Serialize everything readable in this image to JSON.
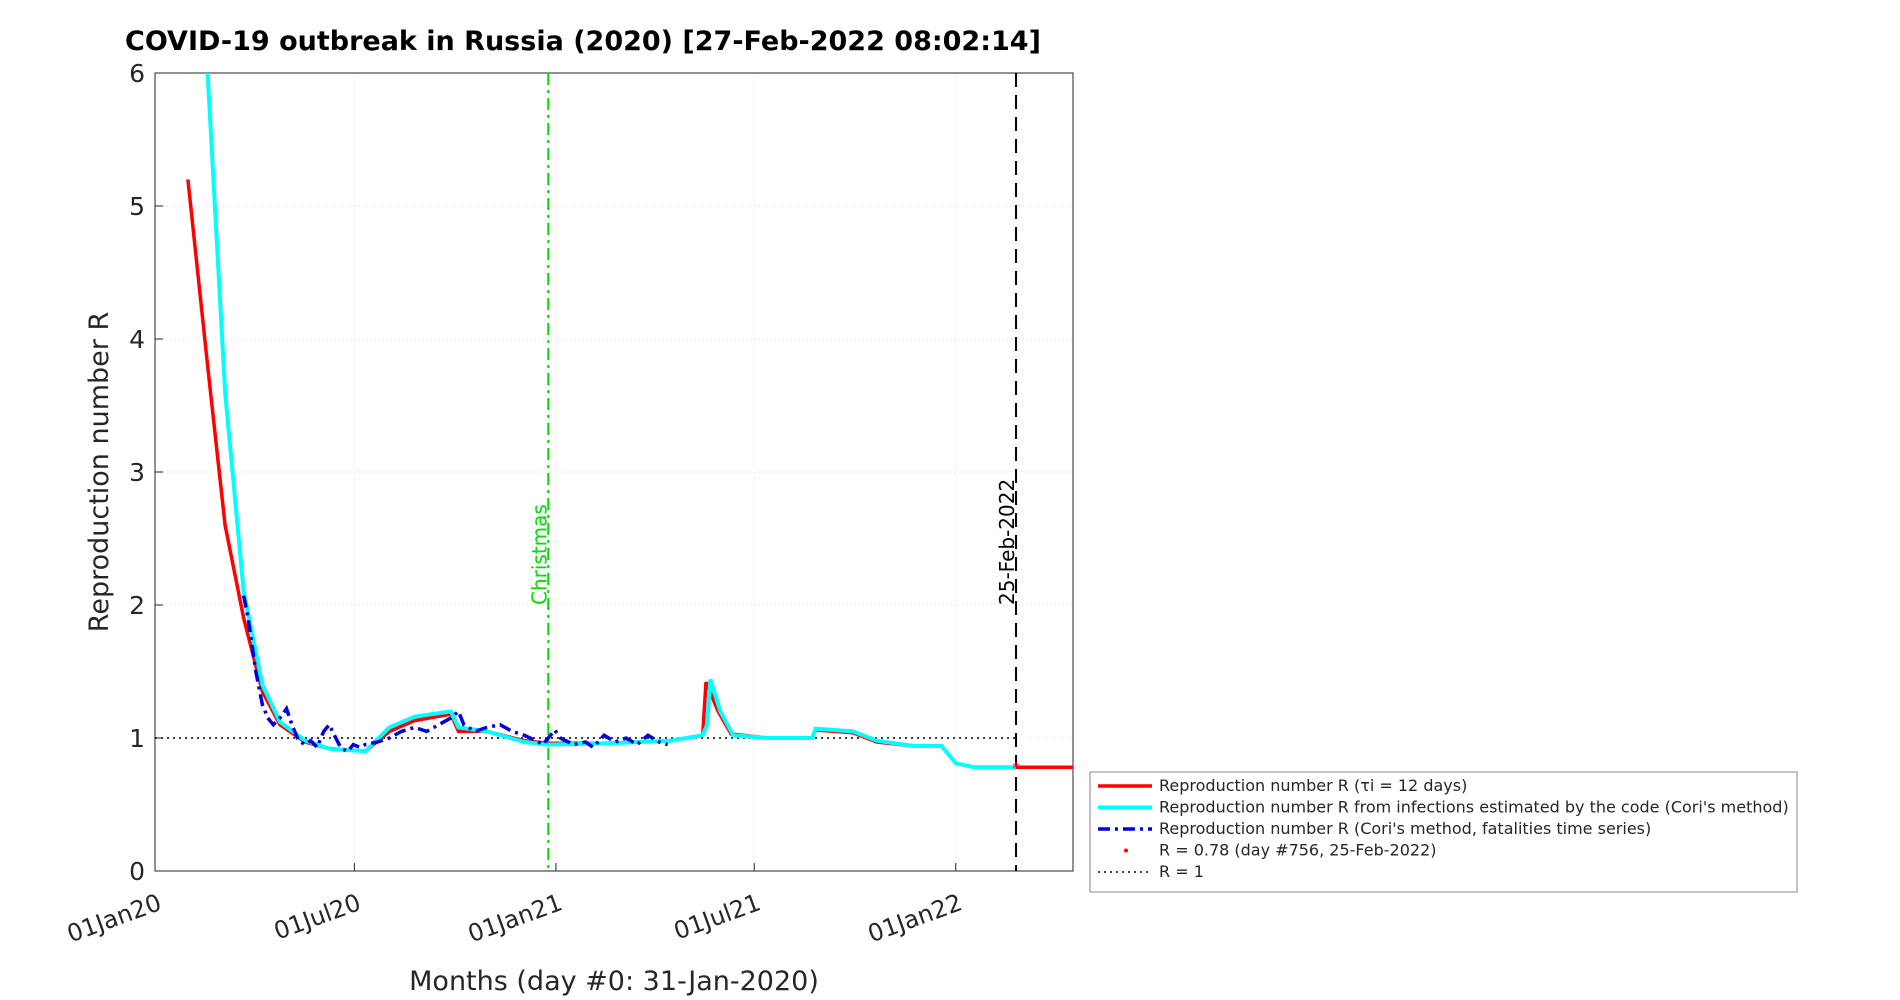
{
  "chart_data": {
    "type": "line",
    "title": "COVID-19 outbreak in Russia (2020) [27-Feb-2022 08:02:14]",
    "xlabel": "Months (day #0: 31-Jan-2020)",
    "ylabel": "Reproduction number R",
    "xlim": [
      -30,
      808
    ],
    "ylim": [
      0,
      6
    ],
    "xticks": [
      {
        "value": -30,
        "label": "01Jan20"
      },
      {
        "value": 152,
        "label": "01Jul20"
      },
      {
        "value": 336,
        "label": "01Jan21"
      },
      {
        "value": 517,
        "label": "01Jul21"
      },
      {
        "value": 701,
        "label": "01Jan22"
      }
    ],
    "yticks": [
      0,
      1,
      2,
      3,
      4,
      5,
      6
    ],
    "grid": true,
    "series": [
      {
        "name": "Reproduction number R (τi = 12 days)",
        "color": "#ff0000",
        "style": "solid",
        "x": [
          0,
          18,
          34,
          51,
          68,
          84,
          107,
          129,
          162,
          184,
          207,
          240,
          247,
          273,
          307,
          329,
          384,
          440,
          470,
          473,
          484,
          496,
          529,
          570,
          573,
          607,
          629,
          662,
          688,
          701,
          718,
          756,
          808
        ],
        "values": [
          5.2,
          3.8,
          2.6,
          1.9,
          1.35,
          1.1,
          0.97,
          0.92,
          0.9,
          1.05,
          1.13,
          1.18,
          1.05,
          1.05,
          0.98,
          0.96,
          0.96,
          0.98,
          1.02,
          1.42,
          1.2,
          1.03,
          1.0,
          1.0,
          1.06,
          1.04,
          0.97,
          0.94,
          0.94,
          0.81,
          0.78,
          0.78,
          0.78
        ]
      },
      {
        "name": "Reproduction number R from infections estimated by the code (Cori's method)",
        "color": "#00ffff",
        "style": "solid",
        "x": [
          18,
          34,
          51,
          68,
          84,
          107,
          129,
          162,
          184,
          207,
          240,
          247,
          273,
          307,
          329,
          384,
          440,
          470,
          474,
          477,
          486,
          498,
          529,
          570,
          573,
          607,
          629,
          662,
          688,
          701,
          718,
          756
        ],
        "values": [
          6.0,
          3.6,
          2.1,
          1.4,
          1.12,
          0.98,
          0.92,
          0.9,
          1.08,
          1.16,
          1.2,
          1.08,
          1.05,
          0.97,
          0.95,
          0.96,
          0.98,
          1.02,
          1.1,
          1.44,
          1.2,
          1.02,
          1.0,
          1.0,
          1.07,
          1.05,
          0.98,
          0.94,
          0.94,
          0.81,
          0.78,
          0.78
        ]
      },
      {
        "name": "Reproduction number R (Cori's method, fatalities time series)",
        "color": "#0000dd",
        "style": "dashdot",
        "x": [
          51,
          55,
          62,
          68,
          73,
          78,
          84,
          90,
          95,
          101,
          107,
          112,
          118,
          124,
          129,
          135,
          140,
          146,
          151,
          157,
          162,
          173,
          184,
          195,
          207,
          218,
          229,
          240,
          247,
          252,
          262,
          273,
          285,
          296,
          307,
          318,
          324,
          329,
          335,
          340,
          352,
          363,
          370,
          380,
          390,
          400,
          410,
          420,
          430,
          438
        ],
        "values": [
          2.07,
          1.9,
          1.5,
          1.25,
          1.15,
          1.1,
          1.15,
          1.22,
          1.1,
          0.98,
          0.95,
          0.98,
          0.93,
          1.05,
          1.1,
          1.0,
          0.92,
          0.9,
          0.95,
          0.93,
          0.95,
          0.97,
          1.0,
          1.05,
          1.08,
          1.05,
          1.1,
          1.15,
          1.2,
          1.1,
          1.05,
          1.08,
          1.1,
          1.05,
          1.02,
          0.98,
          0.95,
          1.0,
          1.06,
          1.0,
          0.95,
          0.97,
          0.93,
          1.02,
          0.97,
          1.0,
          0.95,
          1.02,
          0.97,
          0.95
        ]
      }
    ],
    "marker": {
      "name": "R = 0.78 (day #756, 25-Feb-2022)",
      "color": "#ff0000",
      "x": 756,
      "y": 0.78
    },
    "reference": {
      "name": "R = 1",
      "value": 1
    },
    "annotations": [
      {
        "label": "Christmas",
        "x": 329,
        "color": "#00dd00",
        "style": "dashdot"
      },
      {
        "label": "25-Feb-2022",
        "x": 756,
        "color": "#000000",
        "style": "dashed"
      }
    ]
  }
}
